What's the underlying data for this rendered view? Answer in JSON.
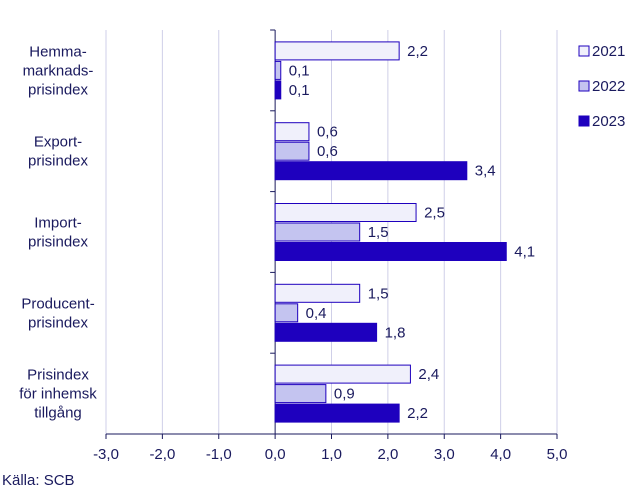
{
  "chart_data": {
    "type": "bar",
    "orientation": "horizontal",
    "categories": [
      [
        "Hemma-",
        "marknads-",
        "prisindex"
      ],
      [
        "Export-",
        "prisindex"
      ],
      [
        "Import-",
        "prisindex"
      ],
      [
        "Producent-",
        "prisindex"
      ],
      [
        "Prisindex",
        "för inhemsk",
        "tillgång"
      ]
    ],
    "series": [
      {
        "name": "2021",
        "values": [
          2.2,
          0.6,
          2.5,
          1.5,
          2.4
        ],
        "color": "#f0f0fb"
      },
      {
        "name": "2022",
        "values": [
          0.1,
          0.6,
          1.5,
          0.4,
          0.9
        ],
        "color": "#c4c4f0"
      },
      {
        "name": "2023",
        "values": [
          0.1,
          3.4,
          4.1,
          1.8,
          2.2
        ],
        "color": "#1e00be"
      }
    ],
    "xlim": [
      -3.0,
      5.0
    ],
    "xticks": [
      "-3,0",
      "-2,0",
      "-1,0",
      "0,0",
      "1,0",
      "2,0",
      "3,0",
      "4,0",
      "5,0"
    ],
    "data_labels": [
      [
        "2,2",
        "0,6",
        "2,5",
        "1,5",
        "2,4"
      ],
      [
        "0,1",
        "0,6",
        "1,5",
        "0,4",
        "0,9"
      ],
      [
        "0,1",
        "3,4",
        "4,1",
        "1,8",
        "2,2"
      ]
    ],
    "grid": "vertical",
    "legend_position": "top-right",
    "bar_edge_color": "#1e00be",
    "text_color": "#1a1a5e",
    "grid_color": "#cfcfe8"
  },
  "source": "Källa: SCB"
}
